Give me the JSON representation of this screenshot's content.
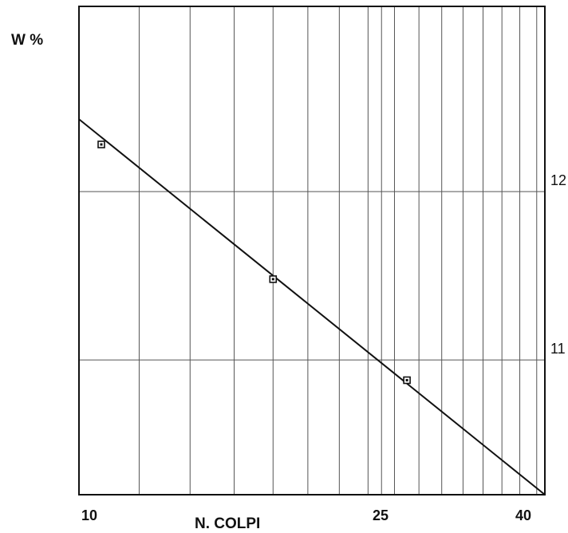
{
  "chart_data": {
    "type": "line",
    "y_label": "W %",
    "x_label": "N. COLPI",
    "x_scale": "log",
    "xlim": [
      10,
      41
    ],
    "ylim": [
      10.2,
      13.1
    ],
    "x_tick_labels": [
      {
        "value": 10,
        "label": "10"
      },
      {
        "value": 25,
        "label": "25"
      },
      {
        "value": 40,
        "label": "40"
      }
    ],
    "y_tick_labels": [
      {
        "value": 12,
        "label": "12"
      },
      {
        "value": 11,
        "label": "11"
      }
    ],
    "x_grid_values": [
      12,
      14,
      16,
      18,
      20,
      22,
      24,
      25,
      26,
      28,
      30,
      32,
      34,
      36,
      38,
      40
    ],
    "y_grid_values": [
      11,
      12
    ],
    "grid": true,
    "series": [
      {
        "points": [
          {
            "x": 10.7,
            "y": 12.28
          },
          {
            "x": 18.0,
            "y": 11.48
          },
          {
            "x": 27.0,
            "y": 10.88
          }
        ],
        "fit_line": [
          {
            "x": 10.0,
            "y": 12.43
          },
          {
            "x": 41.0,
            "y": 10.2
          }
        ]
      }
    ],
    "colors": {
      "line": "#111111",
      "grid": "#555555",
      "frame": "#111111"
    }
  }
}
